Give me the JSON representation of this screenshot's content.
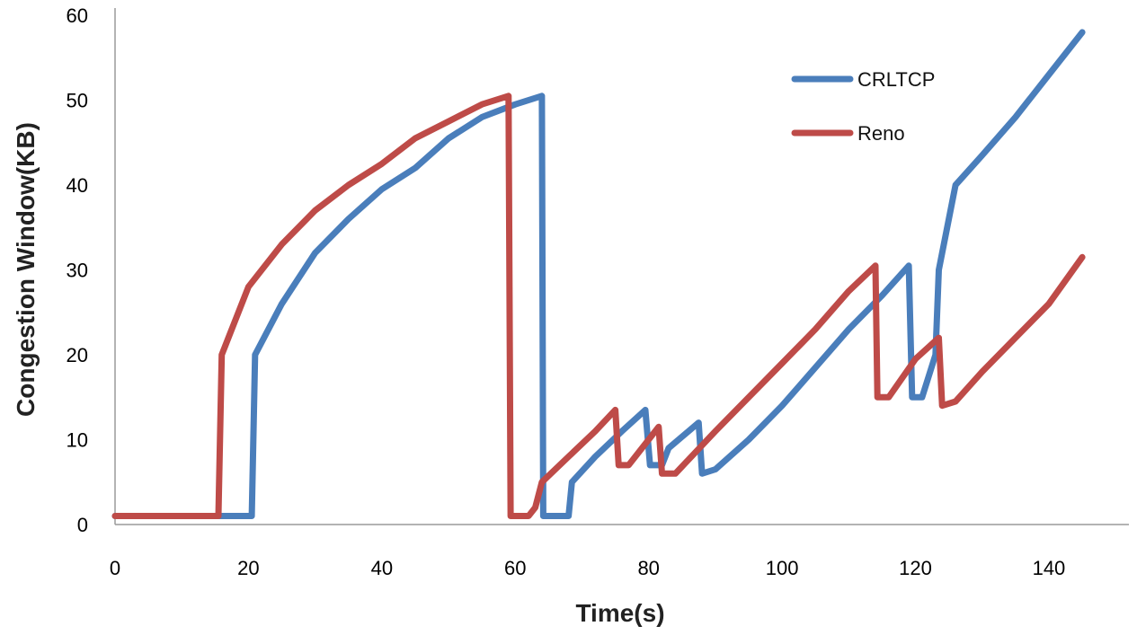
{
  "chart_data": {
    "type": "line",
    "title": "",
    "xlabel": "Time(s)",
    "ylabel": "Congestion Window(KB)",
    "xlim": [
      0,
      152
    ],
    "ylim": [
      0,
      60
    ],
    "xticks": [
      0,
      20,
      40,
      60,
      80,
      100,
      120,
      140
    ],
    "yticks": [
      0,
      10,
      20,
      30,
      40,
      50,
      60
    ],
    "grid": false,
    "legend_position": "top-right",
    "series": [
      {
        "name": "CRLTCP",
        "color": "#4a7ebb",
        "points": [
          [
            0,
            1
          ],
          [
            20,
            1
          ],
          [
            20.5,
            1
          ],
          [
            21,
            20
          ],
          [
            25,
            26
          ],
          [
            30,
            32
          ],
          [
            35,
            36
          ],
          [
            40,
            39.5
          ],
          [
            45,
            42
          ],
          [
            50,
            45.5
          ],
          [
            55,
            48
          ],
          [
            60,
            49.5
          ],
          [
            64,
            50.5
          ],
          [
            64.2,
            1
          ],
          [
            68,
            1
          ],
          [
            68.5,
            5
          ],
          [
            72,
            8
          ],
          [
            76,
            11
          ],
          [
            79.5,
            13.5
          ],
          [
            80.2,
            7
          ],
          [
            82,
            7
          ],
          [
            83,
            9
          ],
          [
            87.5,
            12
          ],
          [
            88,
            6
          ],
          [
            90,
            6.5
          ],
          [
            95,
            10
          ],
          [
            100,
            14
          ],
          [
            105,
            18.5
          ],
          [
            110,
            23
          ],
          [
            115,
            27
          ],
          [
            119,
            30.5
          ],
          [
            119.5,
            15
          ],
          [
            121,
            15
          ],
          [
            123,
            20
          ],
          [
            123.5,
            30
          ],
          [
            126,
            40
          ],
          [
            130,
            43.5
          ],
          [
            135,
            48
          ],
          [
            140,
            53
          ],
          [
            145,
            58
          ]
        ]
      },
      {
        "name": "Reno",
        "color": "#be4b48",
        "points": [
          [
            0,
            1
          ],
          [
            15,
            1
          ],
          [
            15.5,
            1
          ],
          [
            16,
            20
          ],
          [
            20,
            28
          ],
          [
            25,
            33
          ],
          [
            30,
            37
          ],
          [
            35,
            40
          ],
          [
            40,
            42.5
          ],
          [
            45,
            45.5
          ],
          [
            50,
            47.5
          ],
          [
            55,
            49.5
          ],
          [
            59,
            50.5
          ],
          [
            59.3,
            1
          ],
          [
            62,
            1
          ],
          [
            63,
            2
          ],
          [
            64,
            5
          ],
          [
            68,
            8
          ],
          [
            72,
            11
          ],
          [
            75,
            13.5
          ],
          [
            75.5,
            7
          ],
          [
            77,
            7
          ],
          [
            81.5,
            11.5
          ],
          [
            82,
            6
          ],
          [
            84,
            6
          ],
          [
            90,
            11
          ],
          [
            95,
            15
          ],
          [
            100,
            19
          ],
          [
            105,
            23
          ],
          [
            110,
            27.5
          ],
          [
            114,
            30.5
          ],
          [
            114.3,
            15
          ],
          [
            116,
            15
          ],
          [
            120,
            19.5
          ],
          [
            123.5,
            22
          ],
          [
            124,
            14
          ],
          [
            126,
            14.5
          ],
          [
            130,
            18
          ],
          [
            135,
            22
          ],
          [
            140,
            26
          ],
          [
            145,
            31.5
          ]
        ]
      }
    ]
  }
}
